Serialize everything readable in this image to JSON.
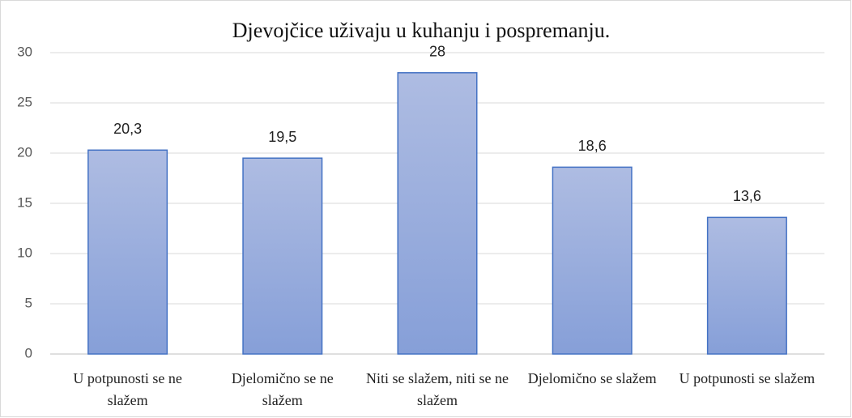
{
  "chart_data": {
    "type": "bar",
    "title": "Djevojčice uživaju u kuhanju i pospremanju.",
    "categories": [
      "U potpunosti se ne slažem",
      "Djelomično se ne slažem",
      "Niti se slažem, niti se ne slažem",
      "Djelomično se slažem",
      "U potpunosti se slažem"
    ],
    "values": [
      20.3,
      19.5,
      28,
      18.6,
      13.6
    ],
    "value_labels": [
      "20,3",
      "19,5",
      "28",
      "18,6",
      "13,6"
    ],
    "color": "#8fa5da",
    "ylim": [
      0,
      30
    ],
    "yticks": [
      0,
      5,
      10,
      15,
      20,
      25,
      30
    ],
    "grid": true
  }
}
